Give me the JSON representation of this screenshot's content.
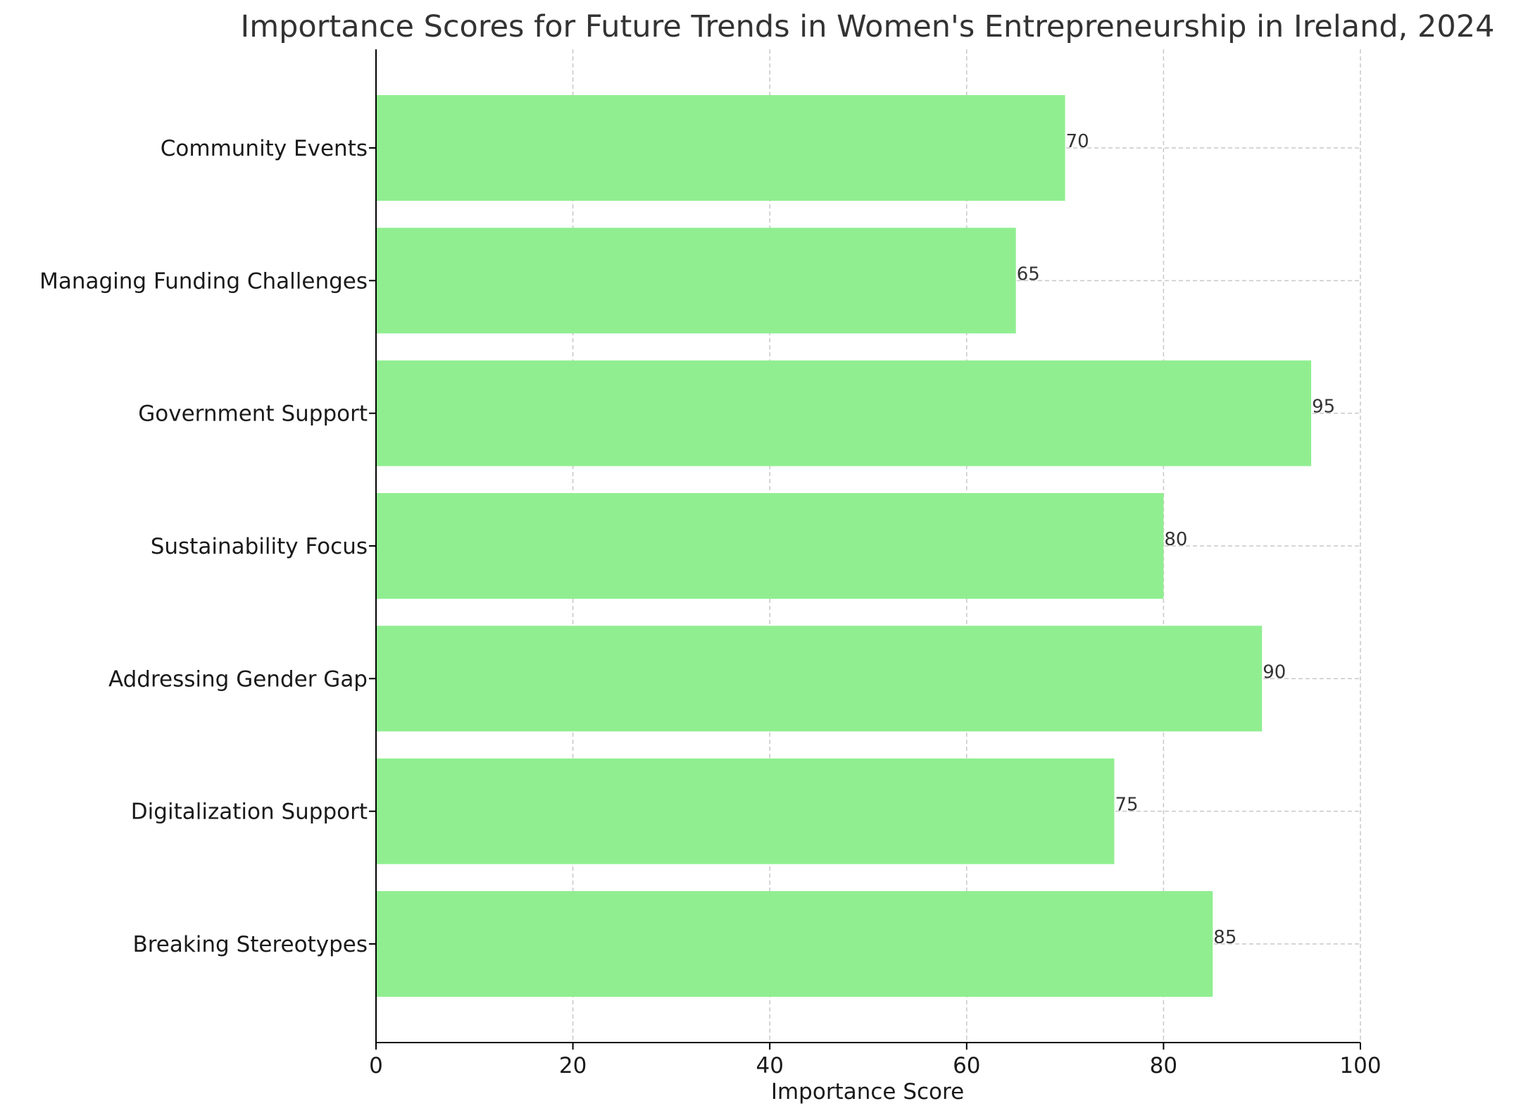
{
  "chart_data": {
    "type": "bar",
    "orientation": "horizontal",
    "title": "Importance Scores for Future Trends in Women's Entrepreneurship in Ireland, 2024",
    "xlabel": "Importance Score",
    "ylabel": "",
    "xlim": [
      0,
      100
    ],
    "xticks": [
      0,
      20,
      40,
      60,
      80,
      100
    ],
    "grid": true,
    "bar_color": "#90ee90",
    "categories": [
      "Breaking Stereotypes",
      "Digitalization Support",
      "Addressing Gender Gap",
      "Sustainability Focus",
      "Government Support",
      "Managing Funding Challenges",
      "Community Events"
    ],
    "values": [
      85,
      75,
      90,
      80,
      95,
      65,
      70
    ],
    "data_labels": [
      "85",
      "75",
      "90",
      "80",
      "95",
      "65",
      "70"
    ]
  }
}
